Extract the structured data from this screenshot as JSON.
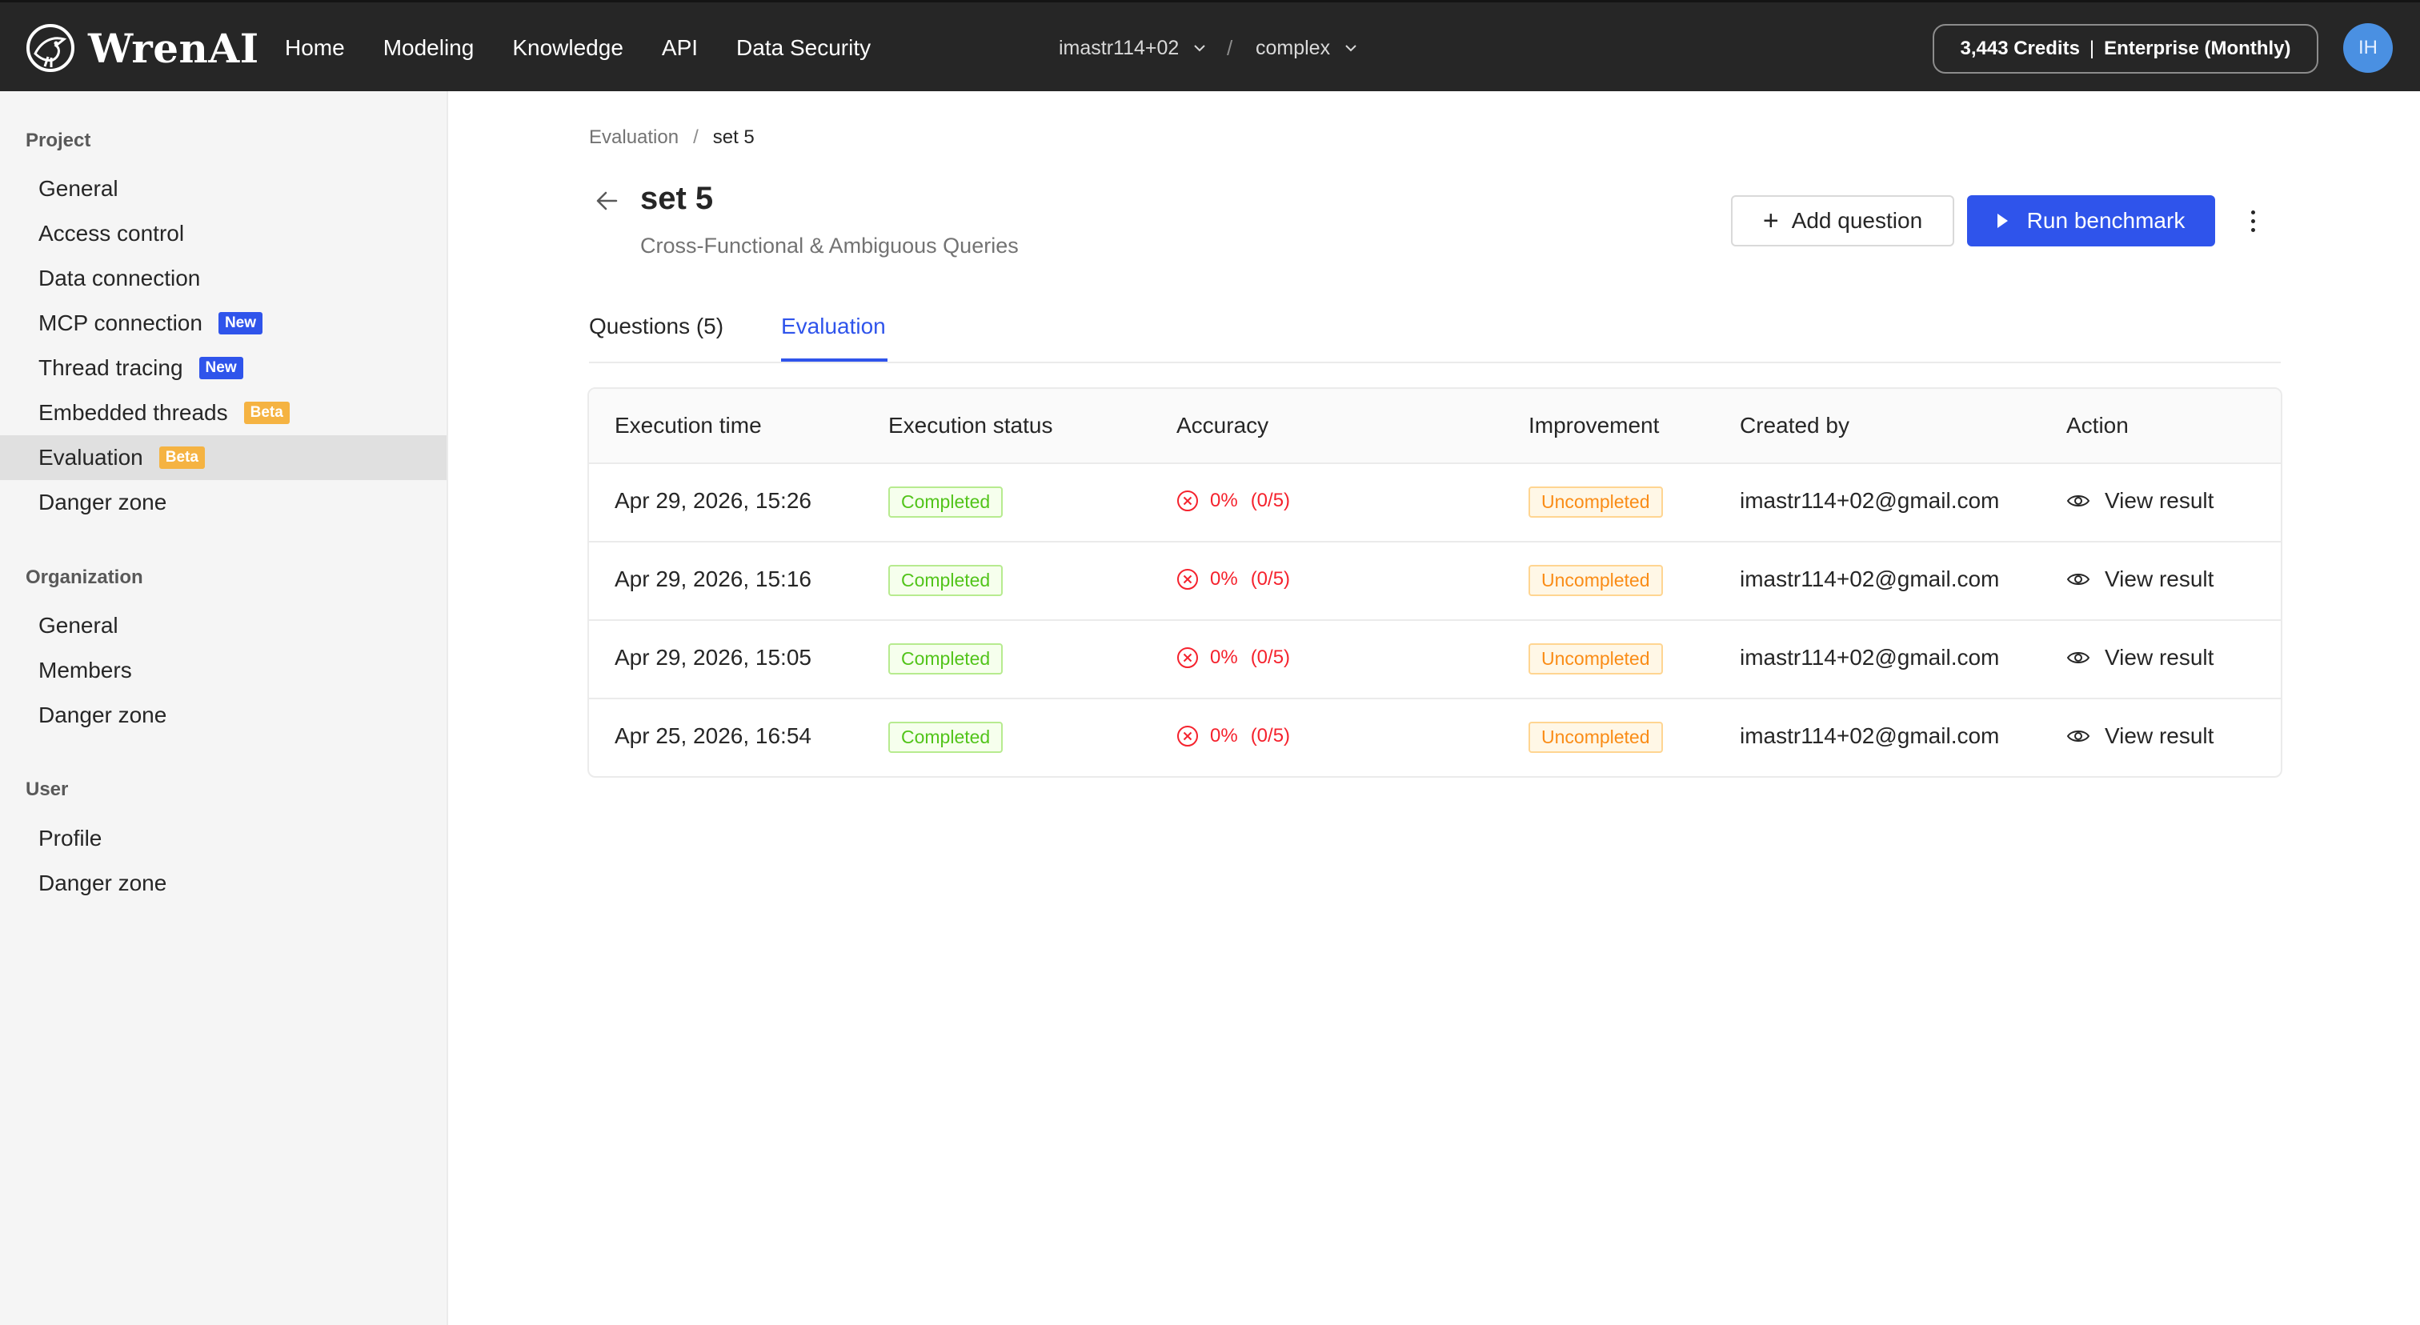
{
  "topbar": {
    "brand": "WrenAI",
    "nav": [
      "Home",
      "Modeling",
      "Knowledge",
      "API",
      "Data Security"
    ],
    "account_selector": "imastr114+02",
    "project_selector": "complex",
    "separator": "/",
    "credits": "3,443 Credits",
    "plan": "Enterprise (Monthly)",
    "avatar_initials": "IH"
  },
  "sidebar": {
    "project_title": "Project",
    "project_items": [
      {
        "label": "General"
      },
      {
        "label": "Access control"
      },
      {
        "label": "Data connection"
      },
      {
        "label": "MCP connection",
        "badge": "New"
      },
      {
        "label": "Thread tracing",
        "badge": "New"
      },
      {
        "label": "Embedded threads",
        "badge": "Beta"
      },
      {
        "label": "Evaluation",
        "badge": "Beta"
      },
      {
        "label": "Danger zone"
      }
    ],
    "organization_title": "Organization",
    "organization_items": [
      {
        "label": "General"
      },
      {
        "label": "Members"
      },
      {
        "label": "Danger zone"
      }
    ],
    "user_title": "User",
    "user_items": [
      {
        "label": "Profile"
      },
      {
        "label": "Danger zone"
      }
    ]
  },
  "main": {
    "breadcrumb": [
      "Evaluation",
      "set 5"
    ],
    "breadcrumb_sep": "/",
    "title": "set 5",
    "subtitle": "Cross-Functional & Ambiguous Queries",
    "add_question_label": "Add question",
    "run_benchmark_label": "Run benchmark",
    "tabs": [
      {
        "label": "Questions (5)",
        "active": false
      },
      {
        "label": "Evaluation",
        "active": true
      }
    ]
  },
  "table": {
    "headers": [
      "Execution time",
      "Execution status",
      "Accuracy",
      "Improvement",
      "Created by",
      "Action"
    ],
    "rows": [
      {
        "time": "Apr 29, 2026, 15:26",
        "status": "Completed",
        "accuracy": "0%",
        "fraction": "(0/5)",
        "improvement": "Uncompleted",
        "created_by": "imastr114+02@gmail.com",
        "action": "View result"
      },
      {
        "time": "Apr 29, 2026, 15:16",
        "status": "Completed",
        "accuracy": "0%",
        "fraction": "(0/5)",
        "improvement": "Uncompleted",
        "created_by": "imastr114+02@gmail.com",
        "action": "View result"
      },
      {
        "time": "Apr 29, 2026, 15:05",
        "status": "Completed",
        "accuracy": "0%",
        "fraction": "(0/5)",
        "improvement": "Uncompleted",
        "created_by": "imastr114+02@gmail.com",
        "action": "View result"
      },
      {
        "time": "Apr 25, 2026, 16:54",
        "status": "Completed",
        "accuracy": "0%",
        "fraction": "(0/5)",
        "improvement": "Uncompleted",
        "created_by": "imastr114+02@gmail.com",
        "action": "View result"
      }
    ]
  },
  "colors": {
    "primary": "#2f54eb",
    "topbar_bg": "#262626",
    "success": "#52c41a",
    "warning": "#fa8c16",
    "error": "#f5222d",
    "beta_badge": "#f5b342"
  },
  "icons": {
    "logo": "wren-bird-icon",
    "dropdown": "chevron-down-icon",
    "back": "arrow-left-icon",
    "add": "plus-icon",
    "run": "play-icon",
    "more": "more-vertical-icon",
    "accuracy": "close-circle-icon",
    "view": "eye-icon"
  }
}
